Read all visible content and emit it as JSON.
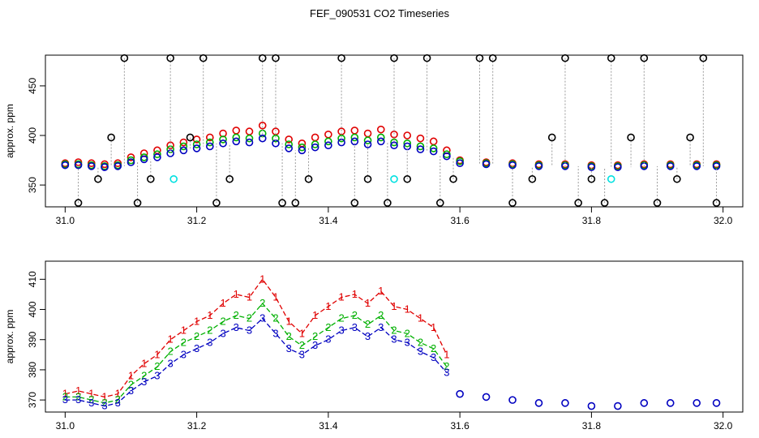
{
  "title": "FEF_090531  CO2 Timeseries",
  "colors": {
    "series1": "#e00000",
    "series2": "#00b000",
    "series3": "#0000c0",
    "raw": "#000000",
    "flag": "#00e0e0",
    "connector": "#9a9a9a"
  },
  "chart_data": [
    {
      "type": "scatter",
      "title": "",
      "xlabel": "",
      "ylabel": "approx. ppm",
      "xlim": [
        30.97,
        32.03
      ],
      "ylim": [
        328,
        481
      ],
      "xticks": [
        31.0,
        31.2,
        31.4,
        31.6,
        31.8,
        32.0
      ],
      "xtick_labels": [
        "31.0",
        "31.2",
        "31.4",
        "31.6",
        "31.8",
        "32.0"
      ],
      "yticks": [
        350,
        400,
        450
      ],
      "ytick_labels": [
        "350",
        "400",
        "450"
      ],
      "grid": false,
      "markers": "open circles",
      "series": [
        {
          "color": "red",
          "x": [
            31.0,
            31.02,
            31.04,
            31.06,
            31.08,
            31.1,
            31.12,
            31.14,
            31.16,
            31.18,
            31.2,
            31.22,
            31.24,
            31.26,
            31.28,
            31.3,
            31.32,
            31.34,
            31.36,
            31.38,
            31.4,
            31.42,
            31.44,
            31.46,
            31.48,
            31.5,
            31.52,
            31.54,
            31.56,
            31.58,
            31.6,
            31.64,
            31.68,
            31.72,
            31.76,
            31.8,
            31.84,
            31.88,
            31.92,
            31.96,
            31.99
          ],
          "y": [
            372,
            373,
            372,
            371,
            372,
            378,
            382,
            385,
            390,
            393,
            396,
            398,
            402,
            405,
            404,
            410,
            404,
            396,
            392,
            398,
            401,
            404,
            405,
            402,
            406,
            401,
            400,
            397,
            394,
            385,
            375,
            373,
            372,
            371,
            371,
            370,
            370,
            371,
            371,
            371,
            371
          ]
        },
        {
          "color": "green",
          "x": [
            31.0,
            31.02,
            31.04,
            31.06,
            31.08,
            31.1,
            31.12,
            31.14,
            31.16,
            31.18,
            31.2,
            31.22,
            31.24,
            31.26,
            31.28,
            31.3,
            31.32,
            31.34,
            31.36,
            31.38,
            31.4,
            31.42,
            31.44,
            31.46,
            31.48,
            31.5,
            31.52,
            31.54,
            31.56,
            31.58,
            31.6,
            31.64,
            31.68,
            31.72,
            31.76,
            31.8,
            31.84,
            31.88,
            31.92,
            31.96,
            31.99
          ],
          "y": [
            371,
            371,
            370,
            369,
            370,
            375,
            378,
            381,
            386,
            389,
            391,
            393,
            396,
            398,
            397,
            402,
            397,
            391,
            388,
            391,
            394,
            397,
            398,
            395,
            398,
            393,
            392,
            389,
            387,
            381,
            374,
            372,
            371,
            370,
            370,
            369,
            369,
            370,
            370,
            370,
            370
          ]
        },
        {
          "color": "blue",
          "x": [
            31.0,
            31.02,
            31.04,
            31.06,
            31.08,
            31.1,
            31.12,
            31.14,
            31.16,
            31.18,
            31.2,
            31.22,
            31.24,
            31.26,
            31.28,
            31.3,
            31.32,
            31.34,
            31.36,
            31.38,
            31.4,
            31.42,
            31.44,
            31.46,
            31.48,
            31.5,
            31.52,
            31.54,
            31.56,
            31.58,
            31.6,
            31.64,
            31.68,
            31.72,
            31.76,
            31.8,
            31.84,
            31.88,
            31.92,
            31.96,
            31.99
          ],
          "y": [
            370,
            370,
            369,
            368,
            369,
            373,
            376,
            378,
            382,
            385,
            387,
            389,
            392,
            394,
            393,
            397,
            392,
            387,
            385,
            388,
            390,
            393,
            394,
            391,
            394,
            390,
            389,
            386,
            384,
            379,
            372,
            371,
            370,
            369,
            369,
            368,
            368,
            369,
            369,
            369,
            369
          ]
        },
        {
          "color": "black",
          "x": [
            31.02,
            31.05,
            31.07,
            31.09,
            31.11,
            31.13,
            31.16,
            31.19,
            31.21,
            31.23,
            31.25,
            31.3,
            31.32,
            31.33,
            31.35,
            31.37,
            31.42,
            31.44,
            31.46,
            31.49,
            31.5,
            31.52,
            31.55,
            31.57,
            31.59,
            31.63,
            31.65,
            31.68,
            31.71,
            31.74,
            31.76,
            31.78,
            31.8,
            31.82,
            31.83,
            31.86,
            31.88,
            31.9,
            31.93,
            31.95,
            31.97,
            31.99
          ],
          "y": [
            332,
            356,
            398,
            478,
            332,
            356,
            478,
            398,
            478,
            332,
            356,
            478,
            478,
            332,
            332,
            356,
            478,
            332,
            356,
            332,
            478,
            356,
            478,
            332,
            356,
            478,
            478,
            332,
            356,
            398,
            478,
            332,
            356,
            332,
            478,
            398,
            478,
            332,
            356,
            398,
            478,
            332
          ]
        },
        {
          "color": "cyan",
          "x": [
            31.165,
            31.5,
            31.83
          ],
          "y": [
            356,
            356,
            356
          ]
        }
      ]
    },
    {
      "type": "scatter",
      "title": "",
      "xlabel": "",
      "ylabel": "approx. ppm",
      "xlim": [
        30.97,
        32.03
      ],
      "ylim": [
        366,
        416
      ],
      "xticks": [
        31.0,
        31.2,
        31.4,
        31.6,
        31.8,
        32.0
      ],
      "xtick_labels": [
        "31.0",
        "31.2",
        "31.4",
        "31.6",
        "31.8",
        "32.0"
      ],
      "yticks": [
        370,
        380,
        390,
        400,
        410
      ],
      "ytick_labels": [
        "370",
        "380",
        "390",
        "400",
        "410"
      ],
      "grid": false,
      "markers": "numbers 1, 2, 3 and open circles",
      "series": [
        {
          "label": "1",
          "color": "red",
          "x": [
            31.0,
            31.02,
            31.04,
            31.06,
            31.08,
            31.1,
            31.12,
            31.14,
            31.16,
            31.18,
            31.2,
            31.22,
            31.24,
            31.26,
            31.28,
            31.3,
            31.32,
            31.34,
            31.36,
            31.38,
            31.4,
            31.42,
            31.44,
            31.46,
            31.48,
            31.5,
            31.52,
            31.54,
            31.56,
            31.58
          ],
          "y": [
            372,
            373,
            372,
            371,
            372,
            378,
            382,
            385,
            390,
            393,
            396,
            398,
            402,
            405,
            404,
            410,
            404,
            396,
            392,
            398,
            401,
            404,
            405,
            402,
            406,
            401,
            400,
            397,
            394,
            385
          ]
        },
        {
          "label": "2",
          "color": "green",
          "x": [
            31.0,
            31.02,
            31.04,
            31.06,
            31.08,
            31.1,
            31.12,
            31.14,
            31.16,
            31.18,
            31.2,
            31.22,
            31.24,
            31.26,
            31.28,
            31.3,
            31.32,
            31.34,
            31.36,
            31.38,
            31.4,
            31.42,
            31.44,
            31.46,
            31.48,
            31.5,
            31.52,
            31.54,
            31.56,
            31.58
          ],
          "y": [
            371,
            371,
            370,
            369,
            370,
            375,
            378,
            381,
            386,
            389,
            391,
            393,
            396,
            398,
            397,
            402,
            397,
            391,
            388,
            391,
            394,
            397,
            398,
            395,
            398,
            393,
            392,
            389,
            387,
            381
          ]
        },
        {
          "label": "3",
          "color": "blue",
          "x": [
            31.0,
            31.02,
            31.04,
            31.06,
            31.08,
            31.1,
            31.12,
            31.14,
            31.16,
            31.18,
            31.2,
            31.22,
            31.24,
            31.26,
            31.28,
            31.3,
            31.32,
            31.34,
            31.36,
            31.38,
            31.4,
            31.42,
            31.44,
            31.46,
            31.48,
            31.5,
            31.52,
            31.54,
            31.56,
            31.58
          ],
          "y": [
            370,
            370,
            369,
            368,
            369,
            373,
            376,
            378,
            382,
            385,
            387,
            389,
            392,
            394,
            393,
            397,
            392,
            387,
            385,
            388,
            390,
            393,
            394,
            391,
            394,
            390,
            389,
            386,
            384,
            379
          ]
        },
        {
          "color": "blue",
          "x": [
            31.6,
            31.64,
            31.68,
            31.72,
            31.76,
            31.8,
            31.84,
            31.88,
            31.92,
            31.96,
            31.99
          ],
          "y": [
            372,
            371,
            370,
            369,
            369,
            368,
            368,
            369,
            369,
            369,
            369
          ]
        }
      ]
    }
  ]
}
